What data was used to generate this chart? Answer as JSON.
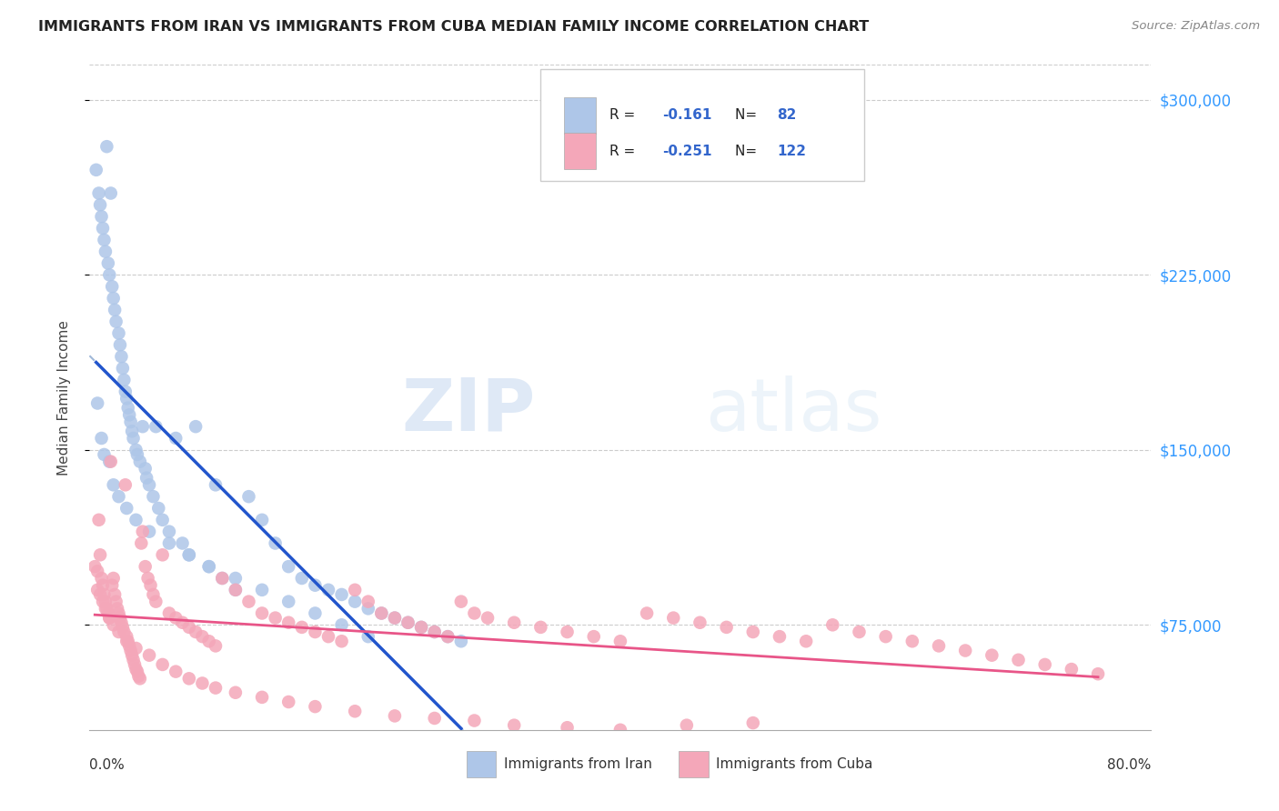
{
  "title": "IMMIGRANTS FROM IRAN VS IMMIGRANTS FROM CUBA MEDIAN FAMILY INCOME CORRELATION CHART",
  "source": "Source: ZipAtlas.com",
  "ylabel": "Median Family Income",
  "y_ticks": [
    75000,
    150000,
    225000,
    300000
  ],
  "y_tick_labels": [
    "$75,000",
    "$150,000",
    "$225,000",
    "$300,000"
  ],
  "x_min": 0.0,
  "x_max": 0.8,
  "y_min": 30000,
  "y_max": 315000,
  "iran_R": -0.161,
  "iran_N": 82,
  "cuba_R": -0.251,
  "cuba_N": 122,
  "iran_color": "#aec6e8",
  "cuba_color": "#f4a7b9",
  "iran_line_color": "#2255cc",
  "cuba_line_color": "#e85588",
  "dashed_line_color": "#a0b8d8",
  "watermark_zip": "ZIP",
  "watermark_atlas": "atlas",
  "iran_scatter_x": [
    0.005,
    0.007,
    0.008,
    0.009,
    0.01,
    0.011,
    0.012,
    0.013,
    0.014,
    0.015,
    0.016,
    0.017,
    0.018,
    0.019,
    0.02,
    0.022,
    0.023,
    0.024,
    0.025,
    0.026,
    0.027,
    0.028,
    0.029,
    0.03,
    0.031,
    0.032,
    0.033,
    0.035,
    0.036,
    0.038,
    0.04,
    0.042,
    0.043,
    0.045,
    0.048,
    0.05,
    0.052,
    0.055,
    0.06,
    0.065,
    0.07,
    0.075,
    0.08,
    0.09,
    0.095,
    0.1,
    0.11,
    0.12,
    0.13,
    0.14,
    0.15,
    0.16,
    0.17,
    0.18,
    0.19,
    0.2,
    0.21,
    0.22,
    0.23,
    0.24,
    0.25,
    0.26,
    0.27,
    0.28,
    0.006,
    0.009,
    0.011,
    0.015,
    0.018,
    0.022,
    0.028,
    0.035,
    0.045,
    0.06,
    0.075,
    0.09,
    0.11,
    0.13,
    0.15,
    0.17,
    0.19,
    0.21
  ],
  "iran_scatter_y": [
    270000,
    260000,
    255000,
    250000,
    245000,
    240000,
    235000,
    280000,
    230000,
    225000,
    260000,
    220000,
    215000,
    210000,
    205000,
    200000,
    195000,
    190000,
    185000,
    180000,
    175000,
    172000,
    168000,
    165000,
    162000,
    158000,
    155000,
    150000,
    148000,
    145000,
    160000,
    142000,
    138000,
    135000,
    130000,
    160000,
    125000,
    120000,
    115000,
    155000,
    110000,
    105000,
    160000,
    100000,
    135000,
    95000,
    90000,
    130000,
    120000,
    110000,
    100000,
    95000,
    92000,
    90000,
    88000,
    85000,
    82000,
    80000,
    78000,
    76000,
    74000,
    72000,
    70000,
    68000,
    170000,
    155000,
    148000,
    145000,
    135000,
    130000,
    125000,
    120000,
    115000,
    110000,
    105000,
    100000,
    95000,
    90000,
    85000,
    80000,
    75000,
    70000
  ],
  "cuba_scatter_x": [
    0.004,
    0.006,
    0.007,
    0.008,
    0.009,
    0.01,
    0.011,
    0.012,
    0.013,
    0.014,
    0.015,
    0.016,
    0.017,
    0.018,
    0.019,
    0.02,
    0.021,
    0.022,
    0.023,
    0.024,
    0.025,
    0.026,
    0.027,
    0.028,
    0.029,
    0.03,
    0.031,
    0.032,
    0.033,
    0.034,
    0.035,
    0.036,
    0.037,
    0.038,
    0.039,
    0.04,
    0.042,
    0.044,
    0.046,
    0.048,
    0.05,
    0.055,
    0.06,
    0.065,
    0.07,
    0.075,
    0.08,
    0.085,
    0.09,
    0.095,
    0.1,
    0.11,
    0.12,
    0.13,
    0.14,
    0.15,
    0.16,
    0.17,
    0.18,
    0.19,
    0.2,
    0.21,
    0.22,
    0.23,
    0.24,
    0.25,
    0.26,
    0.27,
    0.28,
    0.29,
    0.3,
    0.32,
    0.34,
    0.36,
    0.38,
    0.4,
    0.42,
    0.44,
    0.46,
    0.48,
    0.5,
    0.52,
    0.54,
    0.56,
    0.58,
    0.6,
    0.62,
    0.64,
    0.66,
    0.68,
    0.7,
    0.72,
    0.74,
    0.76,
    0.006,
    0.008,
    0.01,
    0.012,
    0.015,
    0.018,
    0.022,
    0.028,
    0.035,
    0.045,
    0.055,
    0.065,
    0.075,
    0.085,
    0.095,
    0.11,
    0.13,
    0.15,
    0.17,
    0.2,
    0.23,
    0.26,
    0.29,
    0.32,
    0.36,
    0.4,
    0.45,
    0.5
  ],
  "cuba_scatter_y": [
    100000,
    98000,
    120000,
    105000,
    95000,
    92000,
    88000,
    85000,
    82000,
    80000,
    78000,
    145000,
    92000,
    95000,
    88000,
    85000,
    82000,
    80000,
    78000,
    76000,
    74000,
    72000,
    135000,
    70000,
    68000,
    66000,
    64000,
    62000,
    60000,
    58000,
    56000,
    55000,
    53000,
    52000,
    110000,
    115000,
    100000,
    95000,
    92000,
    88000,
    85000,
    105000,
    80000,
    78000,
    76000,
    74000,
    72000,
    70000,
    68000,
    66000,
    95000,
    90000,
    85000,
    80000,
    78000,
    76000,
    74000,
    72000,
    70000,
    68000,
    90000,
    85000,
    80000,
    78000,
    76000,
    74000,
    72000,
    70000,
    85000,
    80000,
    78000,
    76000,
    74000,
    72000,
    70000,
    68000,
    80000,
    78000,
    76000,
    74000,
    72000,
    70000,
    68000,
    75000,
    72000,
    70000,
    68000,
    66000,
    64000,
    62000,
    60000,
    58000,
    56000,
    54000,
    90000,
    88000,
    85000,
    82000,
    78000,
    75000,
    72000,
    68000,
    65000,
    62000,
    58000,
    55000,
    52000,
    50000,
    48000,
    46000,
    44000,
    42000,
    40000,
    38000,
    36000,
    35000,
    34000,
    32000,
    31000,
    30000,
    32000,
    33000
  ]
}
